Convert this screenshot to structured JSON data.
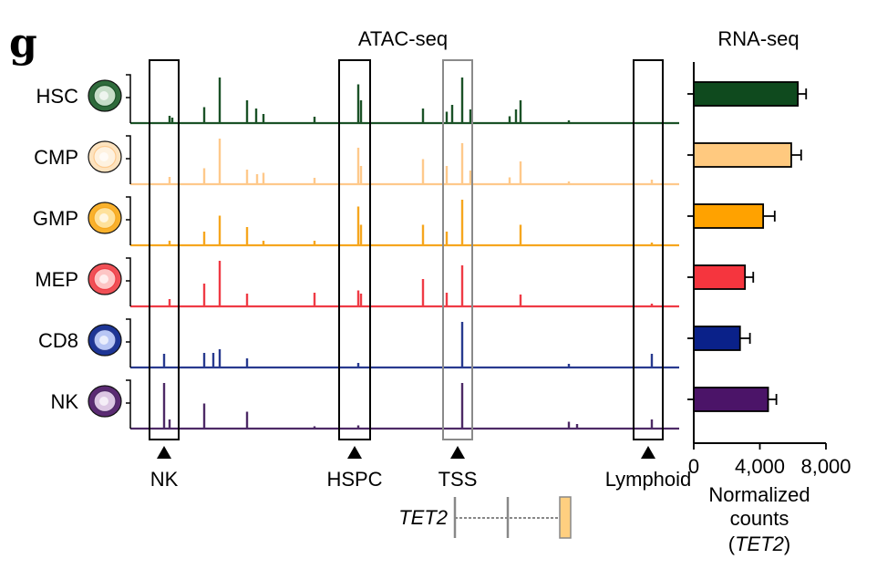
{
  "panel_letter": "g",
  "atac": {
    "title": "ATAC-seq",
    "cell_types": [
      {
        "name": "HSC",
        "color": "#1b5227",
        "cell_fill": "#2f6b3c",
        "cell_core": "#d7ead8"
      },
      {
        "name": "CMP",
        "color": "#fec98b",
        "cell_fill": "#fde3bf",
        "cell_core": "#fff4e4"
      },
      {
        "name": "GMP",
        "color": "#f6a61e",
        "cell_fill": "#f9b12c",
        "cell_core": "#ffe7a8"
      },
      {
        "name": "MEP",
        "color": "#ef3b45",
        "cell_fill": "#f05056",
        "cell_core": "#ffd2d2"
      },
      {
        "name": "CD8",
        "color": "#283a8f",
        "cell_fill": "#1d3596",
        "cell_core": "#c9d6ff"
      },
      {
        "name": "NK",
        "color": "#4d2a66",
        "cell_fill": "#5b2b73",
        "cell_core": "#ead8f0"
      }
    ],
    "regions": [
      {
        "label": "NK",
        "style": "black"
      },
      {
        "label": "HSPC",
        "style": "black"
      },
      {
        "label": "TSS",
        "style": "grey"
      },
      {
        "label": "Lymphoid",
        "style": "black"
      }
    ],
    "gene_label": "TET2"
  },
  "chart_data": {
    "type": "bar",
    "title": "RNA-seq",
    "orientation": "horizontal",
    "categories": [
      "HSC",
      "CMP",
      "GMP",
      "MEP",
      "CD8",
      "NK"
    ],
    "values": [
      6300,
      5900,
      4200,
      3100,
      2800,
      4500
    ],
    "error": [
      500,
      600,
      700,
      500,
      600,
      500
    ],
    "colors": [
      "#0f4a1e",
      "#ffc97f",
      "#ffa200",
      "#f5353e",
      "#0a2189",
      "#4b1468"
    ],
    "xlim": [
      0,
      8000
    ],
    "x_ticks": [
      0,
      4000,
      8000
    ],
    "x_tick_labels": [
      "0",
      "4,000",
      "8,000"
    ],
    "xlabel_lines": [
      "Normalized",
      "counts"
    ],
    "xlabel_gene": "TET2"
  }
}
